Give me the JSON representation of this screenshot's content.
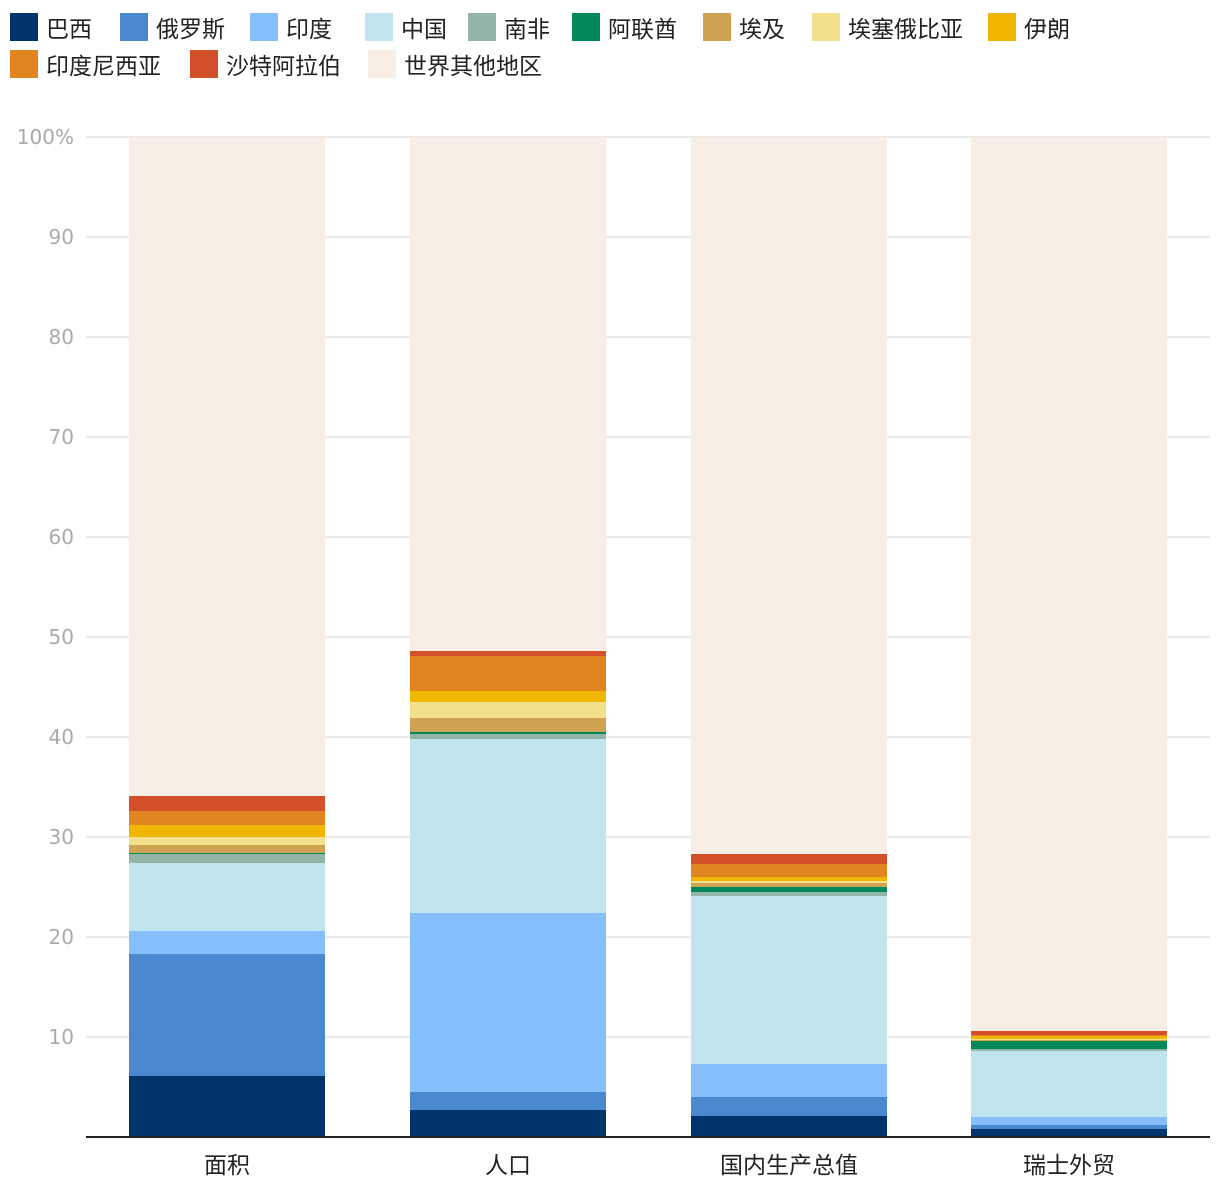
{
  "chart_data": {
    "type": "bar",
    "stacked": true,
    "title": "",
    "xlabel": "",
    "ylabel": "",
    "ylim": [
      0,
      100
    ],
    "yticks": [
      10,
      20,
      30,
      40,
      50,
      60,
      70,
      80,
      90,
      100
    ],
    "ytick_labels": [
      "10",
      "20",
      "30",
      "40",
      "50",
      "60",
      "70",
      "80",
      "90",
      "100%"
    ],
    "grid": true,
    "legend_position": "top",
    "categories": [
      "面积",
      "人口",
      "国内生产总值",
      "瑞士外贸"
    ],
    "series": [
      {
        "name": "巴西",
        "color": "#00336b",
        "values": [
          6.1,
          2.7,
          2.1,
          0.8
        ]
      },
      {
        "name": "俄罗斯",
        "color": "#4a89cf",
        "values": [
          12.2,
          1.8,
          1.9,
          0.4
        ]
      },
      {
        "name": "印度",
        "color": "#86bffc",
        "values": [
          2.3,
          17.9,
          3.3,
          0.8
        ]
      },
      {
        "name": "中国",
        "color": "#c0e5ee",
        "values": [
          6.8,
          17.4,
          16.8,
          6.6
        ]
      },
      {
        "name": "南非",
        "color": "#94b4a8",
        "values": [
          0.9,
          0.5,
          0.4,
          0.2
        ]
      },
      {
        "name": "阿联酋",
        "color": "#00875a",
        "values": [
          0.1,
          0.2,
          0.5,
          0.8
        ]
      },
      {
        "name": "埃及",
        "color": "#d0a352",
        "values": [
          0.8,
          1.4,
          0.4,
          0.1
        ]
      },
      {
        "name": "埃塞俄比亚",
        "color": "#f2e08c",
        "values": [
          0.8,
          1.6,
          0.2,
          0.1
        ]
      },
      {
        "name": "伊朗",
        "color": "#f1b600",
        "values": [
          1.2,
          1.1,
          0.4,
          0.3
        ]
      },
      {
        "name": "印度尼西亚",
        "color": "#e08520",
        "values": [
          1.4,
          3.5,
          1.3,
          0.1
        ]
      },
      {
        "name": "沙特阿拉伯",
        "color": "#d3502a",
        "values": [
          1.5,
          0.5,
          1.0,
          0.4
        ]
      },
      {
        "name": "世界其他地区",
        "color": "#f7efe6",
        "values": [
          65.9,
          51.4,
          71.7,
          89.4
        ]
      }
    ]
  }
}
